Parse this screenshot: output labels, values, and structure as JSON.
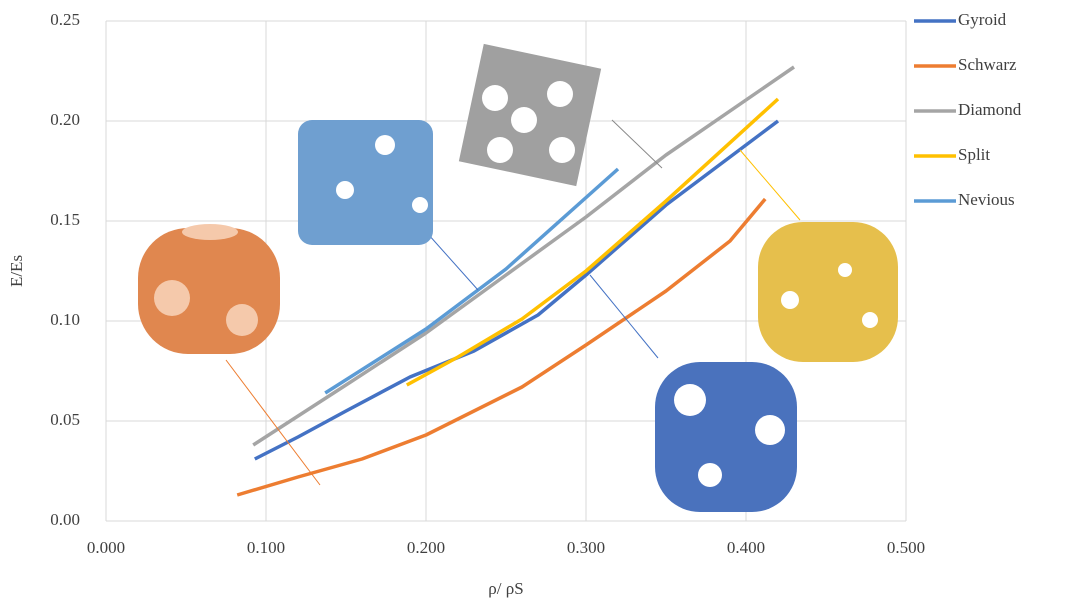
{
  "chart_data": {
    "type": "line",
    "x_label": "ρ/ ρS",
    "y_label": "E/Es",
    "xlim": [
      0,
      0.5
    ],
    "ylim": [
      0,
      0.25
    ],
    "xticks": [
      {
        "value": 0,
        "label": "0.000"
      },
      {
        "value": 0.1,
        "label": "0.100"
      },
      {
        "value": 0.2,
        "label": "0.200"
      },
      {
        "value": 0.3,
        "label": "0.300"
      },
      {
        "value": 0.4,
        "label": "0.400"
      },
      {
        "value": 0.5,
        "label": "0.500"
      }
    ],
    "yticks": [
      {
        "value": 0,
        "label": "0.00"
      },
      {
        "value": 0.05,
        "label": "0.05"
      },
      {
        "value": 0.1,
        "label": "0.10"
      },
      {
        "value": 0.15,
        "label": "0.15"
      },
      {
        "value": 0.2,
        "label": "0.20"
      },
      {
        "value": 0.25,
        "label": "0.25"
      }
    ],
    "grid": true,
    "legend": "right",
    "series": [
      {
        "name": "Gyroid",
        "color": "#4472c4",
        "x": [
          0.093,
          0.12,
          0.15,
          0.19,
          0.23,
          0.27,
          0.3,
          0.35,
          0.42
        ],
        "values": [
          0.031,
          0.042,
          0.055,
          0.072,
          0.085,
          0.103,
          0.123,
          0.158,
          0.2
        ]
      },
      {
        "name": "Schwarz",
        "color": "#ed7d31",
        "x": [
          0.082,
          0.12,
          0.16,
          0.2,
          0.26,
          0.3,
          0.35,
          0.39,
          0.412
        ],
        "values": [
          0.013,
          0.022,
          0.031,
          0.043,
          0.067,
          0.088,
          0.115,
          0.14,
          0.161
        ]
      },
      {
        "name": "Diamond",
        "color": "#a5a5a5",
        "x": [
          0.092,
          0.15,
          0.2,
          0.25,
          0.3,
          0.35,
          0.43
        ],
        "values": [
          0.038,
          0.068,
          0.094,
          0.123,
          0.152,
          0.183,
          0.227
        ]
      },
      {
        "name": "Split",
        "color": "#ffc000",
        "x": [
          0.188,
          0.22,
          0.26,
          0.3,
          0.35,
          0.42
        ],
        "values": [
          0.068,
          0.082,
          0.101,
          0.125,
          0.16,
          0.211
        ]
      },
      {
        "name": "Nevious",
        "color": "#5b9bd5",
        "x": [
          0.137,
          0.2,
          0.25,
          0.32
        ],
        "values": [
          0.064,
          0.096,
          0.126,
          0.176
        ]
      }
    ]
  }
}
